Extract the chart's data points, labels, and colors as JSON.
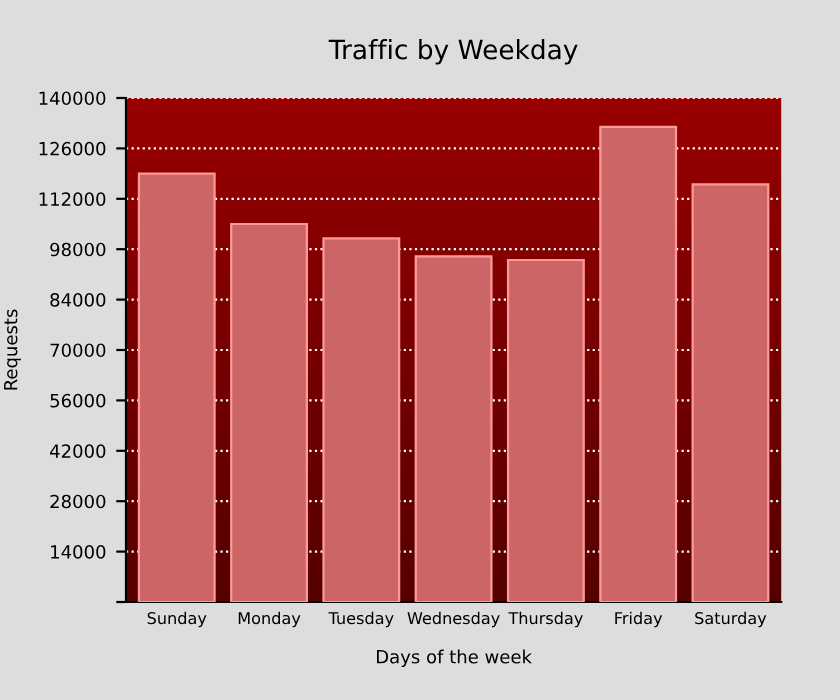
{
  "chart_data": {
    "type": "bar",
    "title": "Traffic by Weekday",
    "xlabel": "Days of the week",
    "ylabel": "Requests",
    "categories": [
      "Sunday",
      "Monday",
      "Tuesday",
      "Wednesday",
      "Thursday",
      "Friday",
      "Saturday"
    ],
    "values": [
      119000,
      105000,
      101000,
      96000,
      95000,
      132000,
      116000
    ],
    "color": "#cc6666",
    "ylim": [
      0,
      140000
    ],
    "yticks": [
      {
        "value": 0,
        "label": null
      },
      14000,
      28000,
      42000,
      56000,
      70000,
      84000,
      98000,
      112000,
      126000,
      140000
    ],
    "grid": "y"
  }
}
